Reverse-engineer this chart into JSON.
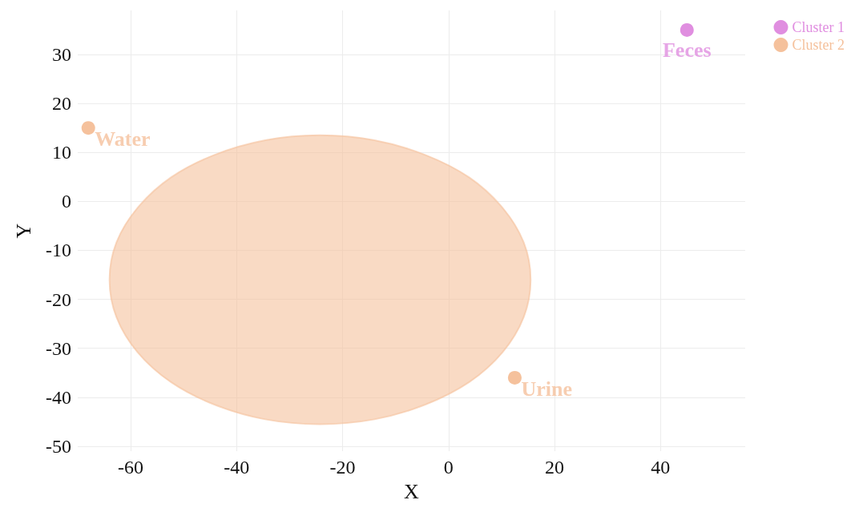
{
  "chart_data": {
    "type": "scatter",
    "xlabel": "X",
    "ylabel": "Y",
    "xlim": [
      -70,
      56
    ],
    "xticks": [
      -60,
      -40,
      -20,
      0,
      20,
      40
    ],
    "ylim": [
      -51,
      39
    ],
    "yticks": [
      -50,
      -40,
      -30,
      -20,
      -10,
      0,
      10,
      20,
      30
    ],
    "grid": true,
    "legend": "top right",
    "marker": "circle",
    "series": [
      {
        "type": "area",
        "marker": "none",
        "color": "#f5c19c",
        "x": [
          15.5,
          14.2,
          10.2,
          3.9,
          -4.4,
          -14,
          -24.3,
          -34.6,
          -44.2,
          -52.4,
          -58.7,
          -62.7,
          -64,
          -62.7,
          -58.7,
          -52.4,
          -44.2,
          -34.6,
          -24.3,
          -14,
          -4.4,
          3.9,
          10.2,
          14.2
        ],
        "values": [
          -16,
          -8.4,
          -1.3,
          4.9,
          9.5,
          12.5,
          13.5,
          12.5,
          9.5,
          4.9,
          -1.3,
          -8.4,
          -16,
          -23.6,
          -30.8,
          -36.9,
          -41.5,
          -44.5,
          -45.5,
          -44.5,
          -41.5,
          -36.9,
          -30.8,
          -23.6
        ]
      },
      {
        "name": "Cluster 1",
        "color": "#e08ee0",
        "x": [
          45
        ],
        "values": [
          35
        ]
      },
      {
        "name": "Cluster 2",
        "color": "#f5c19c",
        "x": [
          -68,
          12.5
        ],
        "values": [
          15,
          -36
        ]
      }
    ],
    "annotations": [
      {
        "text": "Feces",
        "x": 45,
        "y": 35
      },
      {
        "text": "Water",
        "x": -68,
        "y": 15
      },
      {
        "text": "Urine",
        "x": 12.5,
        "y": -36
      }
    ]
  }
}
